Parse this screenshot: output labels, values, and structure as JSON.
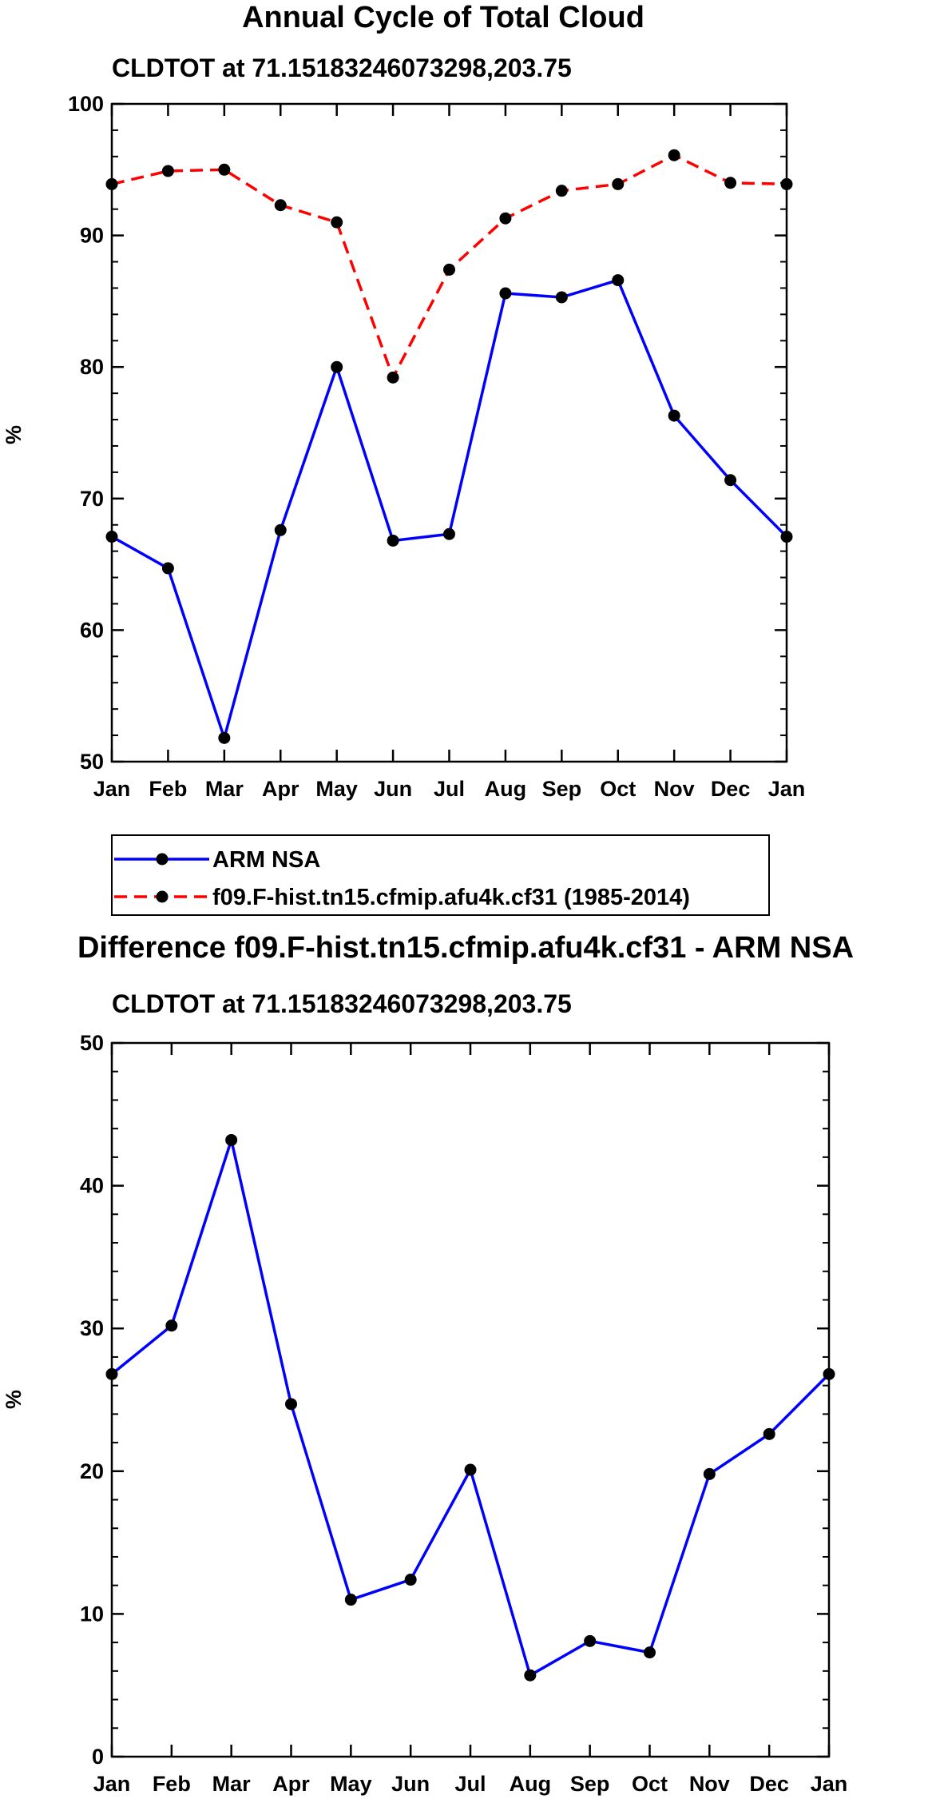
{
  "chart_data": [
    {
      "type": "line",
      "title": "Annual Cycle of Total Cloud",
      "subtitle": "CLDTOT at 71.15183246073298,203.75",
      "xlabel": "",
      "ylabel": "%",
      "categories": [
        "Jan",
        "Feb",
        "Mar",
        "Apr",
        "May",
        "Jun",
        "Jul",
        "Aug",
        "Sep",
        "Oct",
        "Nov",
        "Dec",
        "Jan"
      ],
      "ylim": [
        50,
        100
      ],
      "yticks": [
        50,
        60,
        70,
        80,
        90,
        100
      ],
      "series": [
        {
          "name": "ARM NSA",
          "color": "#0000ff",
          "dash": "solid",
          "values": [
            67.1,
            64.7,
            51.8,
            67.6,
            80.0,
            66.8,
            67.3,
            85.6,
            85.3,
            86.6,
            76.3,
            71.4,
            67.1
          ]
        },
        {
          "name": "f09.F-hist.tn15.cfmip.afu4k.cf31 (1985-2014)",
          "color": "#ff0000",
          "dash": "dashed",
          "values": [
            93.9,
            94.9,
            95.0,
            92.3,
            91.0,
            79.2,
            87.4,
            91.3,
            93.4,
            93.9,
            96.1,
            94.0,
            93.9
          ]
        }
      ],
      "legend_position": "bottom"
    },
    {
      "type": "line",
      "title": "Difference f09.F-hist.tn15.cfmip.afu4k.cf31 - ARM NSA",
      "subtitle": "CLDTOT at 71.15183246073298,203.75",
      "xlabel": "",
      "ylabel": "%",
      "categories": [
        "Jan",
        "Feb",
        "Mar",
        "Apr",
        "May",
        "Jun",
        "Jul",
        "Aug",
        "Sep",
        "Oct",
        "Nov",
        "Dec",
        "Jan"
      ],
      "ylim": [
        0,
        50
      ],
      "yticks": [
        0,
        10,
        20,
        30,
        40,
        50
      ],
      "series": [
        {
          "name": "Difference",
          "color": "#0000ff",
          "dash": "solid",
          "values": [
            26.8,
            30.2,
            43.2,
            24.7,
            11.0,
            12.4,
            20.1,
            5.7,
            8.1,
            7.3,
            19.8,
            22.6,
            26.8
          ]
        }
      ]
    }
  ]
}
